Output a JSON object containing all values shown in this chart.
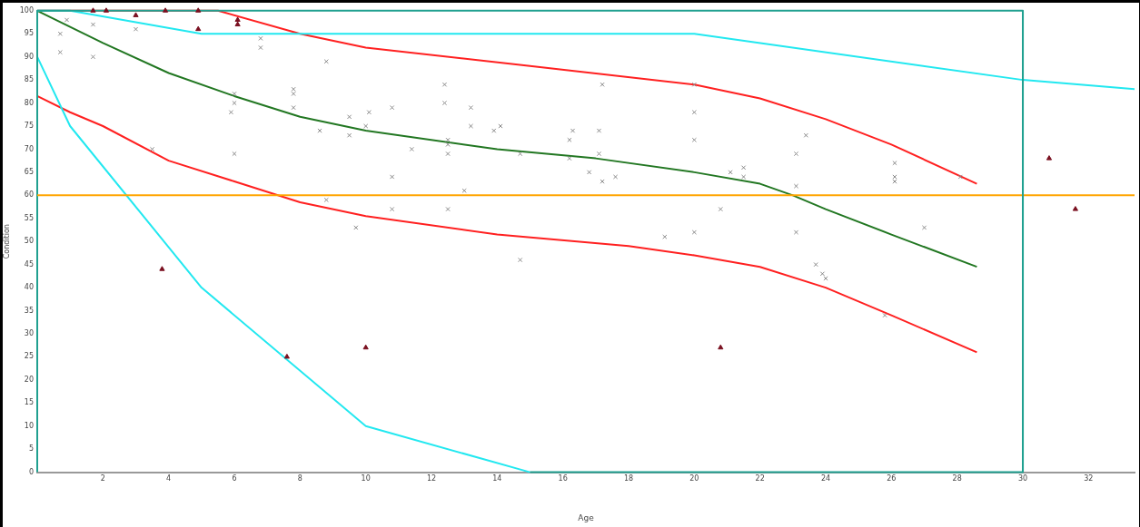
{
  "chart_data": {
    "type": "scatter",
    "xlabel": "Age",
    "ylabel": "Condition",
    "xlim": [
      0,
      33.4
    ],
    "ylim": [
      0,
      100
    ],
    "xticks": [
      2,
      4,
      6,
      8,
      10,
      12,
      14,
      16,
      18,
      20,
      22,
      24,
      26,
      28,
      30,
      32
    ],
    "yticks": [
      0,
      5,
      10,
      15,
      20,
      25,
      30,
      35,
      40,
      45,
      50,
      55,
      60,
      65,
      70,
      75,
      80,
      85,
      90,
      95,
      100
    ],
    "grid": false,
    "legend": false,
    "line_style": "solid",
    "ref_lines": [
      {
        "axis": "y",
        "value": 60,
        "color": "#ffa500"
      },
      {
        "axis": "x",
        "value": 30,
        "color": "#20a090"
      }
    ],
    "series": [
      {
        "type": "line",
        "color": "#20a090",
        "marker": "none",
        "x": [
          0,
          0,
          30,
          30,
          15
        ],
        "values": [
          0,
          100,
          100,
          0,
          0
        ]
      },
      {
        "type": "line",
        "color": "#22e8f0",
        "marker": "none",
        "x": [
          0,
          1,
          5,
          20,
          30,
          33.4
        ],
        "values": [
          100,
          100,
          95,
          95,
          85,
          83
        ]
      },
      {
        "type": "line",
        "color": "#22e8f0",
        "marker": "none",
        "x": [
          0,
          1,
          5,
          10,
          15
        ],
        "values": [
          90,
          75,
          40,
          10,
          0
        ]
      },
      {
        "type": "line",
        "color": "#ff2020",
        "marker": "none",
        "x": [
          0,
          5.5,
          8,
          10,
          15,
          20,
          22,
          24,
          26,
          28.6
        ],
        "values": [
          100,
          100,
          95,
          92,
          88,
          84,
          81,
          76.5,
          71,
          62.5
        ]
      },
      {
        "type": "line",
        "color": "#227722",
        "marker": "none",
        "x": [
          0,
          2,
          4,
          6,
          8,
          10,
          14,
          17,
          20,
          22,
          23,
          24,
          26,
          28.6
        ],
        "values": [
          100,
          93,
          86.5,
          81.5,
          77,
          74,
          70,
          68,
          65,
          62.5,
          60,
          57,
          51.5,
          44.5
        ]
      },
      {
        "type": "line",
        "color": "#ff2020",
        "marker": "none",
        "x": [
          0,
          1,
          2,
          4,
          6,
          8,
          10,
          14,
          18,
          20,
          22,
          24,
          26,
          28.6
        ],
        "values": [
          81.5,
          78,
          75,
          67.5,
          63,
          58.5,
          55.5,
          51.5,
          49,
          47,
          44.5,
          40,
          34,
          26
        ]
      },
      {
        "type": "scatter",
        "color": "#8a8a8a",
        "marker": "cross",
        "x": [
          0.7,
          0.7,
          0.9,
          1.7,
          1.7,
          3.0,
          3.5,
          6.0,
          6.0,
          5.9,
          6.0,
          6.8,
          6.8,
          7.8,
          7.8,
          7.8,
          8.6,
          8.8,
          8.8,
          9.5,
          9.5,
          9.7,
          10.0,
          10.1,
          10.8,
          10.8,
          10.8,
          11.4,
          12.4,
          12.4,
          12.5,
          12.5,
          12.5,
          12.5,
          13.0,
          13.2,
          13.2,
          13.9,
          14.1,
          14.7,
          14.7,
          16.2,
          16.3,
          16.2,
          16.8,
          17.1,
          17.1,
          17.2,
          17.2,
          17.6,
          19.1,
          20.0,
          20.0,
          20.0,
          20.0,
          20.8,
          21.1,
          21.5,
          21.5,
          23.1,
          23.1,
          23.1,
          23.4,
          23.7,
          23.9,
          24.0,
          25.8,
          26.1,
          26.1,
          26.1,
          27.0,
          28.1
        ],
        "values": [
          95,
          91,
          98,
          97,
          90,
          96,
          70,
          82,
          80,
          78,
          69,
          94,
          92,
          83,
          82,
          79,
          74,
          89,
          59,
          77,
          73,
          53,
          75,
          78,
          79,
          64,
          57,
          70,
          84,
          80,
          72,
          71,
          69,
          57,
          61,
          75,
          79,
          74,
          75,
          69,
          46,
          72,
          74,
          68,
          65,
          74,
          69,
          63,
          84,
          64,
          51,
          84,
          78,
          72,
          52,
          57,
          65,
          66,
          64,
          69,
          62,
          52,
          73,
          45,
          43,
          42,
          34,
          67,
          64,
          63,
          53,
          64
        ]
      },
      {
        "type": "scatter",
        "color": "#7a1020",
        "marker": "triangle",
        "x": [
          1.7,
          2.1,
          3.0,
          3.9,
          4.9,
          4.9,
          6.1,
          6.1,
          3.8,
          7.6,
          10.0,
          20.8,
          30.8,
          31.6
        ],
        "values": [
          100,
          100,
          99,
          100,
          96,
          100,
          98,
          97,
          44,
          25,
          27,
          27,
          68,
          57
        ]
      }
    ]
  }
}
